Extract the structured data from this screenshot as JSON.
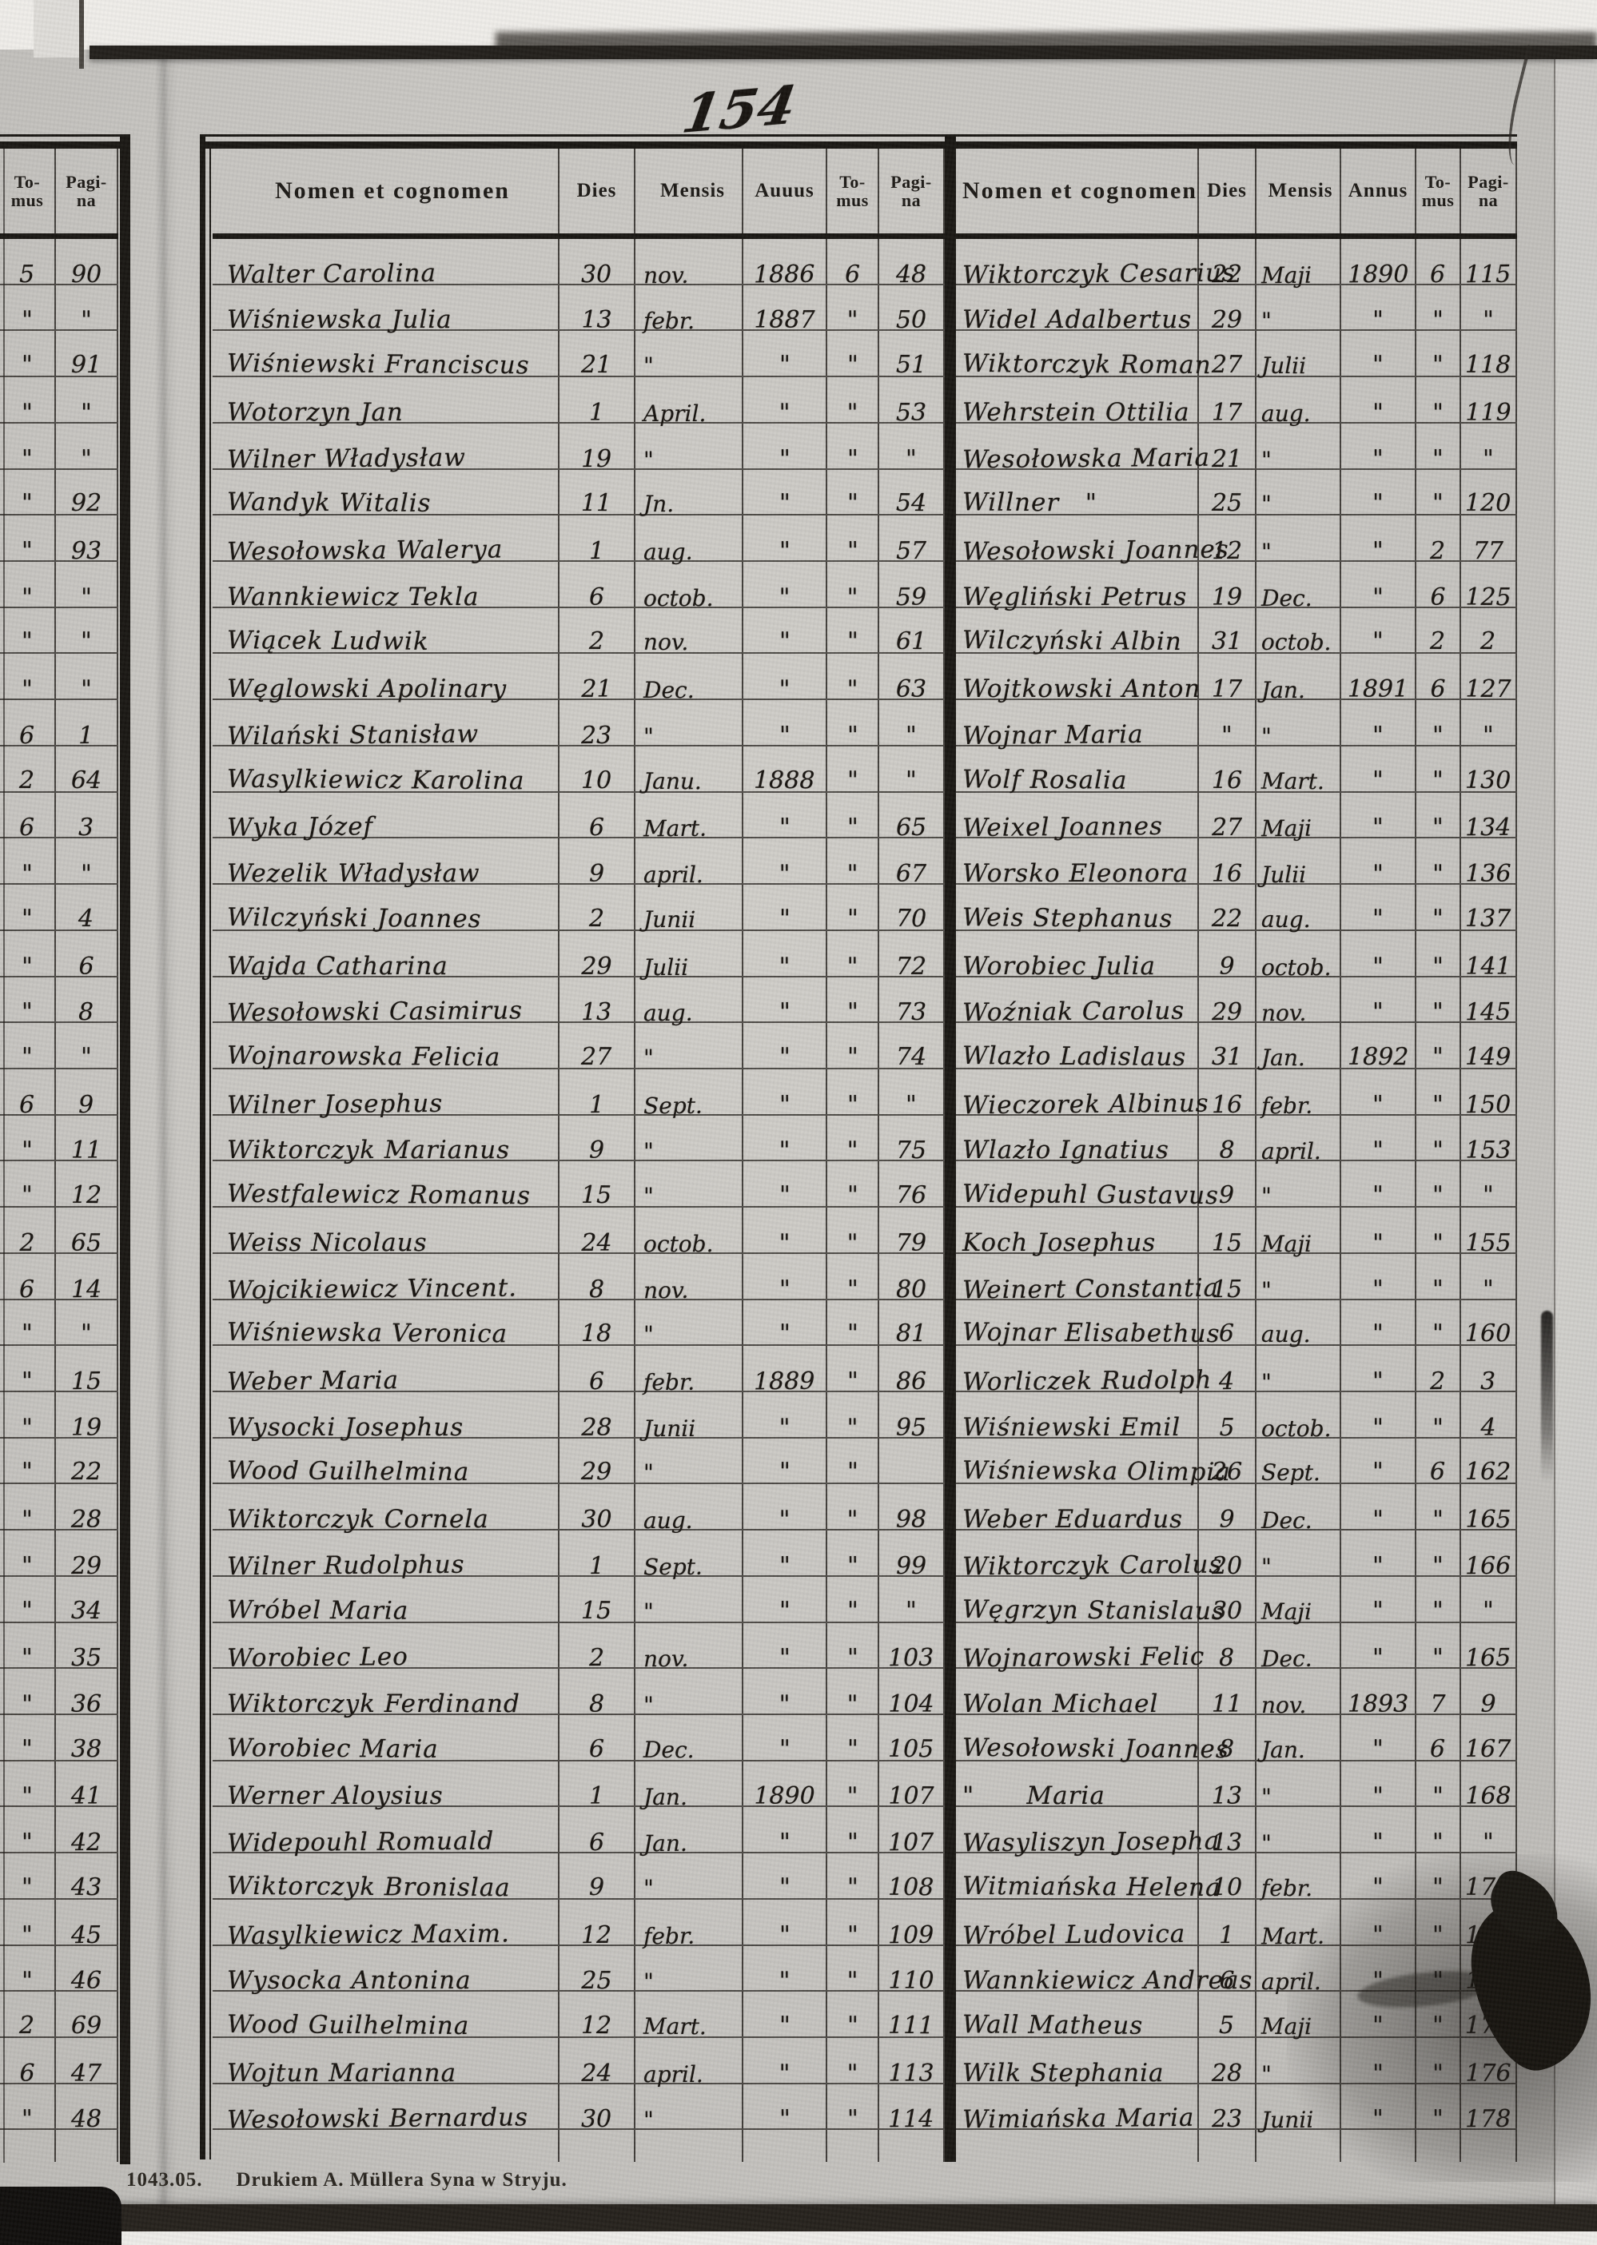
{
  "page": {
    "handwritten_page_number": "154",
    "footer_code": "1043.05.",
    "footer_imprint": "Drukiem A. Müllera Syna w Stryju."
  },
  "left_margin_table": {
    "headers": {
      "tomus": "To-\nmus",
      "pagina": "Pagi-\nna"
    },
    "rows": [
      [
        "5",
        "90"
      ],
      [
        "\"",
        "\""
      ],
      [
        "\"",
        "91"
      ],
      [
        "\"",
        "\""
      ],
      [
        "\"",
        "\""
      ],
      [
        "\"",
        "92"
      ],
      [
        "\"",
        "93"
      ],
      [
        "\"",
        "\""
      ],
      [
        "\"",
        "\""
      ],
      [
        "\"",
        "\""
      ],
      [
        "6",
        "1"
      ],
      [
        "2",
        "64"
      ],
      [
        "6",
        "3"
      ],
      [
        "\"",
        "\""
      ],
      [
        "\"",
        "4"
      ],
      [
        "\"",
        "6"
      ],
      [
        "\"",
        "8"
      ],
      [
        "\"",
        "\""
      ],
      [
        "6",
        "9"
      ],
      [
        "\"",
        "11"
      ],
      [
        "\"",
        "12"
      ],
      [
        "2",
        "65"
      ],
      [
        "6",
        "14"
      ],
      [
        "\"",
        "\""
      ],
      [
        "\"",
        "15"
      ],
      [
        "\"",
        "19"
      ],
      [
        "\"",
        "22"
      ],
      [
        "\"",
        "28"
      ],
      [
        "\"",
        "29"
      ],
      [
        "\"",
        "34"
      ],
      [
        "\"",
        "35"
      ],
      [
        "\"",
        "36"
      ],
      [
        "\"",
        "38"
      ],
      [
        "\"",
        "41"
      ],
      [
        "\"",
        "42"
      ],
      [
        "\"",
        "43"
      ],
      [
        "\"",
        "45"
      ],
      [
        "\"",
        "46"
      ],
      [
        "2",
        "69"
      ],
      [
        "6",
        "47"
      ],
      [
        "\"",
        "48"
      ]
    ]
  },
  "left_table": {
    "headers": {
      "name": "Nomen et cognomen",
      "dies": "Dies",
      "mensis": "Mensis",
      "annus": "Auuus",
      "tomus": "To-\nmus",
      "pagina": "Pagi-\nna"
    },
    "rows": [
      [
        "Walter Carolina",
        "30",
        "nov.",
        "1886",
        "6",
        "48"
      ],
      [
        "Wiśniewska Julia",
        "13",
        "febr.",
        "1887",
        "\"",
        "50"
      ],
      [
        "Wiśniewski Franciscus",
        "21",
        "\"",
        "\"",
        "\"",
        "51"
      ],
      [
        "Wotorzyn Jan",
        "1",
        "April.",
        "\"",
        "\"",
        "53"
      ],
      [
        "Wilner Władysław",
        "19",
        "\"",
        "\"",
        "\"",
        "\""
      ],
      [
        "Wandyk Witalis",
        "11",
        "Jn.",
        "\"",
        "\"",
        "54"
      ],
      [
        "Wesołowska Walerya",
        "1",
        "aug.",
        "\"",
        "\"",
        "57"
      ],
      [
        "Wannkiewicz Tekla",
        "6",
        "octob.",
        "\"",
        "\"",
        "59"
      ],
      [
        "Wiącek Ludwik",
        "2",
        "nov.",
        "\"",
        "\"",
        "61"
      ],
      [
        "Węglowski Apolinary",
        "21",
        "Dec.",
        "\"",
        "\"",
        "63"
      ],
      [
        "Wilański Stanisław",
        "23",
        "\"",
        "\"",
        "\"",
        "\""
      ],
      [
        "Wasylkiewicz Karolina",
        "10",
        "Janu.",
        "1888",
        "\"",
        "\""
      ],
      [
        "Wyka Józef",
        "6",
        "Mart.",
        "\"",
        "\"",
        "65"
      ],
      [
        "Wezelik Władysław",
        "9",
        "april.",
        "\"",
        "\"",
        "67"
      ],
      [
        "Wilczyński Joannes",
        "2",
        "Junii",
        "\"",
        "\"",
        "70"
      ],
      [
        "Wajda Catharina",
        "29",
        "Julii",
        "\"",
        "\"",
        "72"
      ],
      [
        "Wesołowski Casimirus",
        "13",
        "aug.",
        "\"",
        "\"",
        "73"
      ],
      [
        "Wojnarowska Felicia",
        "27",
        "\"",
        "\"",
        "\"",
        "74"
      ],
      [
        "Wilner Josephus",
        "1",
        "Sept.",
        "\"",
        "\"",
        "\""
      ],
      [
        "Wiktorczyk Marianus",
        "9",
        "\"",
        "\"",
        "\"",
        "75"
      ],
      [
        "Westfalewicz Romanus",
        "15",
        "\"",
        "\"",
        "\"",
        "76"
      ],
      [
        "Weiss Nicolaus",
        "24",
        "octob.",
        "\"",
        "\"",
        "79"
      ],
      [
        "Wojcikiewicz Vincent.",
        "8",
        "nov.",
        "\"",
        "\"",
        "80"
      ],
      [
        "Wiśniewska Veronica",
        "18",
        "\"",
        "\"",
        "\"",
        "81"
      ],
      [
        "Weber Maria",
        "6",
        "febr.",
        "1889",
        "\"",
        "86"
      ],
      [
        "Wysocki Josephus",
        "28",
        "Junii",
        "\"",
        "\"",
        "95"
      ],
      [
        "Wood Guilhelmina",
        "29",
        "\"",
        "\"",
        "\"",
        ""
      ],
      [
        "Wiktorczyk Cornela",
        "30",
        "aug.",
        "\"",
        "\"",
        "98"
      ],
      [
        "Wilner Rudolphus",
        "1",
        "Sept.",
        "\"",
        "\"",
        "99"
      ],
      [
        "Wróbel Maria",
        "15",
        "\"",
        "\"",
        "\"",
        "\""
      ],
      [
        "Worobiec Leo",
        "2",
        "nov.",
        "\"",
        "\"",
        "103"
      ],
      [
        "Wiktorczyk Ferdinand",
        "8",
        "\"",
        "\"",
        "\"",
        "104"
      ],
      [
        "Worobiec Maria",
        "6",
        "Dec.",
        "\"",
        "\"",
        "105"
      ],
      [
        "Werner Aloysius",
        "1",
        "Jan.",
        "1890",
        "\"",
        "107"
      ],
      [
        "Widepouhl Romuald",
        "6",
        "Jan.",
        "\"",
        "\"",
        "107"
      ],
      [
        "Wiktorczyk Bronislaa",
        "9",
        "\"",
        "\"",
        "\"",
        "108"
      ],
      [
        "Wasylkiewicz Maxim.",
        "12",
        "febr.",
        "\"",
        "\"",
        "109"
      ],
      [
        "Wysocka Antonina",
        "25",
        "\"",
        "\"",
        "\"",
        "110"
      ],
      [
        "Wood Guilhelmina",
        "12",
        "Mart.",
        "\"",
        "\"",
        "111"
      ],
      [
        "Wojtun Marianna",
        "24",
        "april.",
        "\"",
        "\"",
        "113"
      ],
      [
        "Wesołowski Bernardus",
        "30",
        "\"",
        "\"",
        "\"",
        "114"
      ]
    ]
  },
  "right_table": {
    "headers": {
      "name": "Nomen et cognomen",
      "dies": "Dies",
      "mensis": "Mensis",
      "annus": "Annus",
      "tomus": "To-\nmus",
      "pagina": "Pagi-\nna"
    },
    "rows": [
      [
        "Wiktorczyk Cesarius",
        "22",
        "Maji",
        "1890",
        "6",
        "115"
      ],
      [
        "Widel Adalbertus",
        "29",
        "\"",
        "\"",
        "\"",
        "\""
      ],
      [
        "Wiktorczyk Roman",
        "27",
        "Julii",
        "\"",
        "\"",
        "118"
      ],
      [
        "Wehrstein Ottilia",
        "17",
        "aug.",
        "\"",
        "\"",
        "119"
      ],
      [
        "Wesołowska Maria",
        "21",
        "\"",
        "\"",
        "\"",
        "\""
      ],
      [
        "Willner   \"",
        "25",
        "\"",
        "\"",
        "\"",
        "120"
      ],
      [
        "Wesołowski Joannes",
        "12",
        "\"",
        "\"",
        "2",
        "77"
      ],
      [
        "Węgliński Petrus",
        "19",
        "Dec.",
        "\"",
        "6",
        "125"
      ],
      [
        "Wilczyński Albin",
        "31",
        "octob.",
        "\"",
        "2",
        "2"
      ],
      [
        "Wojtkowski Anton",
        "17",
        "Jan.",
        "1891",
        "6",
        "127"
      ],
      [
        "Wojnar Maria",
        "\"",
        "\"",
        "\"",
        "\"",
        "\""
      ],
      [
        "Wolf Rosalia",
        "16",
        "Mart.",
        "\"",
        "\"",
        "130"
      ],
      [
        "Weixel Joannes",
        "27",
        "Maji",
        "\"",
        "\"",
        "134"
      ],
      [
        "Worsko Eleonora",
        "16",
        "Julii",
        "\"",
        "\"",
        "136"
      ],
      [
        "Weis Stephanus",
        "22",
        "aug.",
        "\"",
        "\"",
        "137"
      ],
      [
        "Worobiec Julia",
        "9",
        "octob.",
        "\"",
        "\"",
        "141"
      ],
      [
        "Woźniak Carolus",
        "29",
        "nov.",
        "\"",
        "\"",
        "145"
      ],
      [
        "Wlazło Ladislaus",
        "31",
        "Jan.",
        "1892",
        "\"",
        "149"
      ],
      [
        "Wieczorek Albinus",
        "16",
        "febr.",
        "\"",
        "\"",
        "150"
      ],
      [
        "Wlazło Ignatius",
        "8",
        "april.",
        "\"",
        "\"",
        "153"
      ],
      [
        "Widepuhl Gustavus",
        "9",
        "\"",
        "\"",
        "\"",
        "\""
      ],
      [
        "Koch Josephus",
        "15",
        "Maji",
        "\"",
        "\"",
        "155"
      ],
      [
        "Weinert Constantia",
        "15",
        "\"",
        "\"",
        "\"",
        "\""
      ],
      [
        "Wojnar Elisabethus",
        "6",
        "aug.",
        "\"",
        "\"",
        "160"
      ],
      [
        "Worliczek Rudolph",
        "4",
        "\"",
        "\"",
        "2",
        "3"
      ],
      [
        "Wiśniewski Emil",
        "5",
        "octob.",
        "\"",
        "\"",
        "4"
      ],
      [
        "Wiśniewska Olimpia",
        "26",
        "Sept.",
        "\"",
        "6",
        "162"
      ],
      [
        "Weber Eduardus",
        "9",
        "Dec.",
        "\"",
        "\"",
        "165"
      ],
      [
        "Wiktorczyk Carolus",
        "20",
        "\"",
        "\"",
        "\"",
        "166"
      ],
      [
        "Węgrzyn Stanislaus",
        "30",
        "Maji",
        "\"",
        "\"",
        "\""
      ],
      [
        "Wojnarowski Felic",
        "8",
        "Dec.",
        "\"",
        "\"",
        "165"
      ],
      [
        "Wolan Michael",
        "11",
        "nov.",
        "1893",
        "7",
        "9"
      ],
      [
        "Wesołowski Joannes",
        "8",
        "Jan.",
        "\"",
        "6",
        "167"
      ],
      [
        "\"      Maria",
        "13",
        "\"",
        "\"",
        "\"",
        "168"
      ],
      [
        "Wasyliszyn Josepha",
        "13",
        "\"",
        "\"",
        "\"",
        "\""
      ],
      [
        "Witmiańska Helena",
        "10",
        "febr.",
        "\"",
        "\"",
        "170"
      ],
      [
        "Wróbel Ludovica",
        "1",
        "Mart.",
        "\"",
        "\"",
        "171"
      ],
      [
        "Wannkiewicz Andreas",
        "6",
        "april.",
        "\"",
        "\"",
        "173"
      ],
      [
        "Wall Matheus",
        "5",
        "Maji",
        "\"",
        "\"",
        "174"
      ],
      [
        "Wilk Stephania",
        "28",
        "\"",
        "\"",
        "\"",
        "176"
      ],
      [
        "Wimiańska Maria",
        "23",
        "Junii",
        "\"",
        "\"",
        "178"
      ]
    ]
  }
}
